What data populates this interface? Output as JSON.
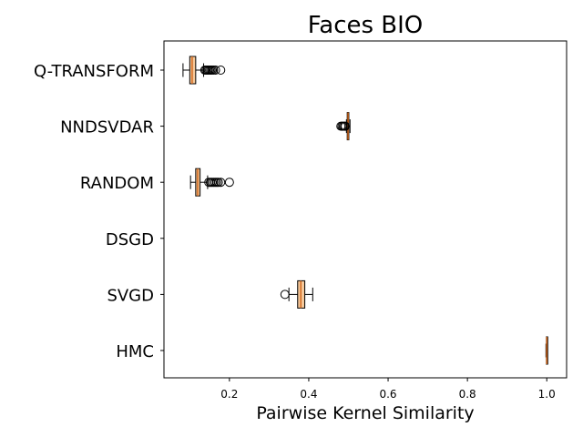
{
  "chart_data": {
    "type": "boxplot",
    "orientation": "horizontal",
    "title": "Faces BIO",
    "xlabel": "Pairwise Kernel Similarity",
    "xlim": [
      0.035,
      1.05
    ],
    "xticks": [
      0.2,
      0.4,
      0.6,
      0.8,
      1.0
    ],
    "xtick_labels": [
      "0.2",
      "0.4",
      "0.6",
      "0.8",
      "1.0"
    ],
    "grid": false,
    "box_color": "#f5c89a",
    "median_color": "#d2691e",
    "categories": [
      "Q-TRANSFORM",
      "NNDSVDAR",
      "RANDOM",
      "DSGD",
      "SVGD",
      "HMC"
    ],
    "boxes": [
      {
        "name": "Q-TRANSFORM",
        "whisker_low": 0.083,
        "q1": 0.1,
        "median": 0.106,
        "q3": 0.115,
        "whisker_high": 0.135,
        "outliers": [
          0.138,
          0.141,
          0.144,
          0.147,
          0.15,
          0.153,
          0.156,
          0.16,
          0.165,
          0.178
        ]
      },
      {
        "name": "NNDSVDAR",
        "whisker_low": 0.495,
        "q1": 0.497,
        "median": 0.499,
        "q3": 0.501,
        "whisker_high": 0.504,
        "outliers": [
          0.481,
          0.484,
          0.487,
          0.49,
          0.492
        ]
      },
      {
        "name": "RANDOM",
        "whisker_low": 0.102,
        "q1": 0.115,
        "median": 0.12,
        "q3": 0.126,
        "whisker_high": 0.145,
        "outliers": [
          0.148,
          0.152,
          0.156,
          0.16,
          0.164,
          0.168,
          0.172,
          0.178,
          0.2
        ]
      },
      {
        "name": "DSGD",
        "whisker_low": null,
        "q1": null,
        "median": null,
        "q3": null,
        "whisker_high": null,
        "outliers": []
      },
      {
        "name": "SVGD",
        "whisker_low": 0.35,
        "q1": 0.372,
        "median": 0.38,
        "q3": 0.39,
        "whisker_high": 0.41,
        "outliers": [
          0.34
        ]
      },
      {
        "name": "HMC",
        "whisker_low": 0.998,
        "q1": 0.999,
        "median": 1.0,
        "q3": 1.0,
        "whisker_high": 1.0,
        "outliers": []
      }
    ]
  }
}
